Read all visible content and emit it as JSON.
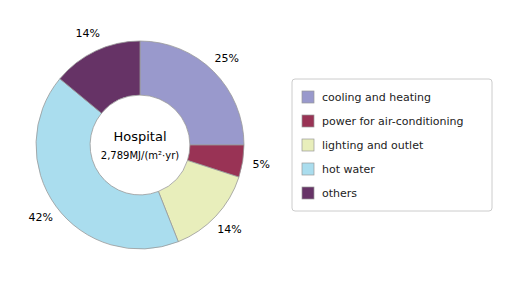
{
  "chart_data": {
    "type": "pie",
    "categories": [
      "cooling and heating",
      "power for air-conditioning",
      "lighting and outlet",
      "hot water",
      "others"
    ],
    "values": [
      25,
      5,
      14,
      42,
      14
    ],
    "value_labels": [
      "25%",
      "5%",
      "14%",
      "42%",
      "14%"
    ],
    "colors": [
      "#9999cc",
      "#993355",
      "#e8eebb",
      "#aaddee",
      "#663366"
    ],
    "data_labels": true,
    "legend": "right",
    "annotations": [
      "Hospital",
      "2,789MJ/(m²·yr)"
    ]
  }
}
